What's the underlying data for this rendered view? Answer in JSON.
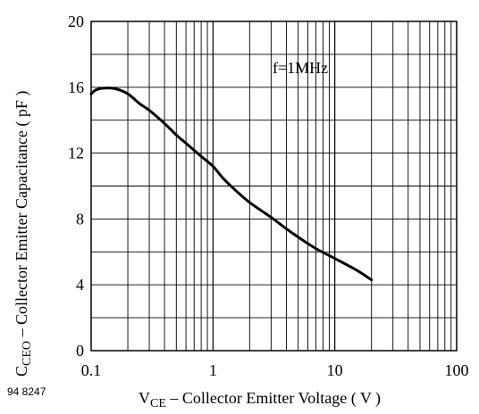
{
  "chart_data": {
    "type": "line",
    "x_scale": "log",
    "xlim": [
      0.1,
      100
    ],
    "ylim": [
      0,
      20
    ],
    "grid": true,
    "x_ticks": [
      0.1,
      1,
      10,
      100
    ],
    "x_tick_labels": [
      "0.1",
      "1",
      "10",
      "100"
    ],
    "y_ticks": [
      0,
      4,
      8,
      12,
      16,
      20
    ],
    "y_tick_labels": [
      "0",
      "4",
      "8",
      "12",
      "16",
      "20"
    ],
    "xlabel": {
      "main": "V",
      "sub": "CE",
      "rest": " – Collector Emitter Voltage ( V )"
    },
    "ylabel": {
      "main": "C",
      "sub": "CEO",
      "rest": " – Collector Emitter Capacitance ( pF )"
    },
    "annotation": "f=1MHz",
    "figure_id": "94 8247",
    "series": [
      {
        "x": [
          0.1,
          0.11,
          0.13,
          0.16,
          0.2,
          0.25,
          0.3,
          0.4,
          0.5,
          0.6,
          0.8,
          1.0,
          1.2,
          1.5,
          2.0,
          3.0,
          4.0,
          5.0,
          7.0,
          10,
          15,
          20
        ],
        "y": [
          15.6,
          15.85,
          15.95,
          15.9,
          15.6,
          15.0,
          14.6,
          13.8,
          13.1,
          12.6,
          11.8,
          11.2,
          10.5,
          9.8,
          9.0,
          8.1,
          7.4,
          6.9,
          6.2,
          5.6,
          4.9,
          4.3
        ]
      }
    ]
  }
}
